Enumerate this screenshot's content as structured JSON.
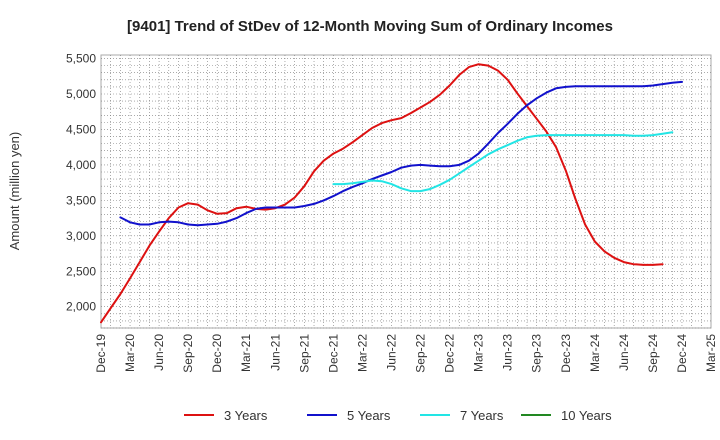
{
  "chart_data": {
    "type": "line",
    "title": "[9401]  Trend of StDev of 12-Month Moving Sum of Ordinary Incomes",
    "xlabel": "",
    "ylabel": "Amount (million yen)",
    "ylim": [
      1700,
      5550
    ],
    "yticks": [
      2000,
      2500,
      3000,
      3500,
      4000,
      4500,
      5000,
      5500
    ],
    "ytick_labels": [
      "2,000",
      "2,500",
      "3,000",
      "3,500",
      "4,000",
      "4,500",
      "5,000",
      "5,500"
    ],
    "x_labels": [
      "Dec-19",
      "Mar-20",
      "Jun-20",
      "Sep-20",
      "Dec-20",
      "Mar-21",
      "Jun-21",
      "Sep-21",
      "Dec-21",
      "Mar-22",
      "Jun-22",
      "Sep-22",
      "Dec-22",
      "Mar-23",
      "Jun-23",
      "Sep-23",
      "Dec-23",
      "Mar-24",
      "Jun-24",
      "Sep-24",
      "Dec-24",
      "Mar-25"
    ],
    "x_months_total": 63,
    "grid": true,
    "legend_position": "bottom",
    "series": [
      {
        "name": "3 Years",
        "color": "#dd1111",
        "start_month": 0,
        "values": [
          1780,
          1980,
          2180,
          2400,
          2630,
          2860,
          3060,
          3250,
          3400,
          3460,
          3440,
          3360,
          3310,
          3320,
          3390,
          3410,
          3380,
          3370,
          3390,
          3440,
          3540,
          3700,
          3910,
          4060,
          4160,
          4230,
          4320,
          4420,
          4520,
          4590,
          4630,
          4660,
          4730,
          4810,
          4890,
          4990,
          5120,
          5270,
          5380,
          5420,
          5400,
          5330,
          5200,
          5010,
          4830,
          4650,
          4470,
          4250,
          3920,
          3520,
          3160,
          2920,
          2780,
          2690,
          2630,
          2600,
          2590,
          2590,
          2600
        ]
      },
      {
        "name": "5 Years",
        "color": "#1111cc",
        "start_month": 2,
        "values": [
          3260,
          3190,
          3160,
          3160,
          3190,
          3200,
          3190,
          3160,
          3150,
          3160,
          3170,
          3200,
          3250,
          3320,
          3380,
          3400,
          3400,
          3400,
          3400,
          3420,
          3450,
          3500,
          3560,
          3630,
          3690,
          3740,
          3800,
          3850,
          3900,
          3960,
          3990,
          4000,
          3990,
          3980,
          3980,
          4000,
          4060,
          4160,
          4300,
          4450,
          4580,
          4720,
          4840,
          4940,
          5020,
          5080,
          5100,
          5110,
          5110,
          5110,
          5110,
          5110,
          5110,
          5110,
          5110,
          5120,
          5140,
          5160,
          5170
        ]
      },
      {
        "name": "7 Years",
        "color": "#22e5e5",
        "start_month": 24,
        "values": [
          3730,
          3730,
          3740,
          3760,
          3780,
          3770,
          3730,
          3670,
          3630,
          3630,
          3660,
          3720,
          3790,
          3880,
          3970,
          4060,
          4150,
          4220,
          4280,
          4340,
          4390,
          4410,
          4420,
          4420,
          4420,
          4420,
          4420,
          4420,
          4420,
          4420,
          4420,
          4410,
          4410,
          4420,
          4440,
          4460
        ]
      },
      {
        "name": "10 Years",
        "color": "#228822",
        "start_month": 0,
        "values": []
      }
    ]
  }
}
